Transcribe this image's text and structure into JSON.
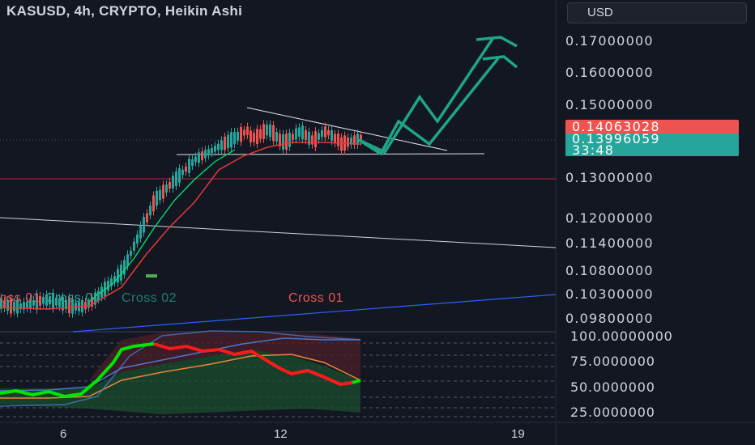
{
  "header": {
    "symbol_title": "KASUSD, 4h, CRYPTO, Heikin Ashi",
    "currency_label": "USD"
  },
  "price_scale": {
    "labels": [
      "0.17000000",
      "0.16000000",
      "0.15000000",
      "0.13000000",
      "0.12000000",
      "0.11400000",
      "0.10800000",
      "0.10300000",
      "0.09800000"
    ],
    "last_price": "0.14063028",
    "close_price": "0.13996059",
    "countdown": "33:48"
  },
  "oscillator_scale": {
    "labels": [
      "100.00000000",
      "75.0000000",
      "50.0000000",
      "25.0000000"
    ]
  },
  "time_axis": {
    "labels": [
      "6",
      "12",
      "19"
    ]
  },
  "annotations": {
    "cross_left_1": "Cross 01",
    "cross_left_2": "Cross 04",
    "cross_left_3": "Cross 02",
    "cross_right": "Cross 01"
  },
  "colors": {
    "background": "#131722",
    "bull_candle": "#26a69a",
    "bear_candle": "#ef5350",
    "ma_green": "#00e676",
    "ma_red": "#e53935",
    "projection": "#1fa588",
    "trendline": "#e0e3eb",
    "support_red": "#b22833",
    "support_blue": "#2962ff",
    "osc_line_up": "#00e600",
    "osc_line_down": "#ff1a1a",
    "osc_band_orange": "#e8883a",
    "osc_band_blue": "#4a78c8"
  }
}
